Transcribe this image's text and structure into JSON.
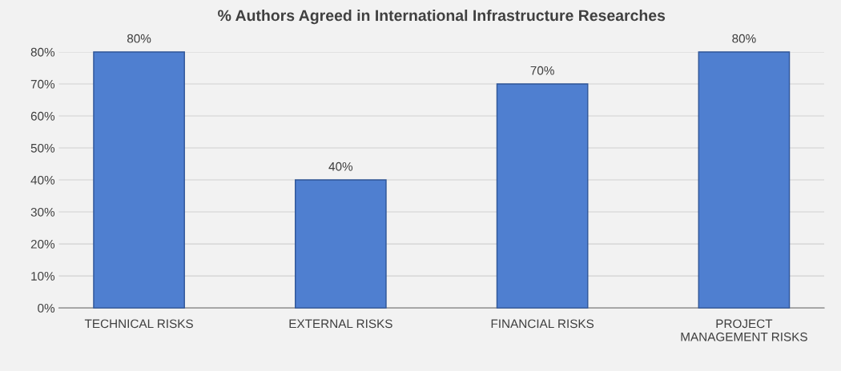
{
  "chart_data": {
    "type": "bar",
    "title": "% Authors Agreed in International Infrastructure Researches",
    "categories": [
      "TECHNICAL RISKS",
      "EXTERNAL RISKS",
      "FINANCIAL RISKS",
      "PROJECT\nMANAGEMENT RISKS"
    ],
    "values": [
      80,
      40,
      70,
      80
    ],
    "value_labels": [
      "80%",
      "40%",
      "70%",
      "80%"
    ],
    "color": "#4f7fd0",
    "ylim": [
      0,
      80
    ],
    "yticks": [
      {
        "value": 0,
        "label": "0%"
      },
      {
        "value": 10,
        "label": "10%"
      },
      {
        "value": 20,
        "label": "20%"
      },
      {
        "value": 30,
        "label": "30%"
      },
      {
        "value": 40,
        "label": "40%"
      },
      {
        "value": 50,
        "label": "50%"
      },
      {
        "value": 60,
        "label": "60%"
      },
      {
        "value": 70,
        "label": "70%"
      },
      {
        "value": 80,
        "label": "80%"
      }
    ],
    "grid": "y"
  }
}
